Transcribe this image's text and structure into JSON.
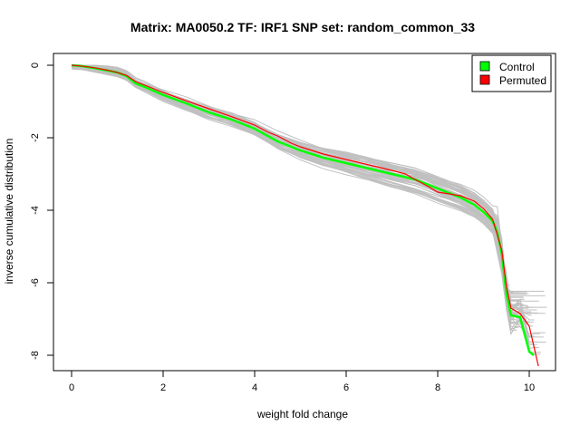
{
  "chart_data": {
    "type": "line",
    "title": "Matrix: MA0050.2 TF: IRF1 SNP set: random_common_33",
    "xlabel": "weight fold change",
    "ylabel": "inverse cumulative distribution",
    "xlim": [
      0,
      10.5
    ],
    "ylim": [
      -8,
      0
    ],
    "xticks": [
      0,
      2,
      4,
      6,
      8,
      10
    ],
    "yticks": [
      0,
      -2,
      -4,
      -6,
      -8
    ],
    "grid": false,
    "legend": {
      "position": "top-right",
      "entries": [
        {
          "label": "Control",
          "color": "#00ff00"
        },
        {
          "label": "Permuted",
          "color": "#ff0000"
        }
      ]
    },
    "series": [
      {
        "name": "Control",
        "color": "#00ff00",
        "x": [
          0.0,
          0.2,
          0.5,
          0.8,
          1.0,
          1.2,
          1.4,
          1.6,
          2.0,
          2.5,
          3.0,
          3.5,
          4.0,
          4.5,
          5.0,
          5.5,
          6.0,
          6.5,
          7.0,
          7.5,
          8.0,
          8.5,
          8.8,
          9.0,
          9.2,
          9.3,
          9.4,
          9.5,
          9.6,
          9.8,
          10.0,
          10.1
        ],
        "values": [
          0.0,
          -0.02,
          -0.08,
          -0.15,
          -0.2,
          -0.3,
          -0.5,
          -0.6,
          -0.82,
          -1.05,
          -1.3,
          -1.5,
          -1.75,
          -2.1,
          -2.35,
          -2.55,
          -2.7,
          -2.85,
          -3.0,
          -3.15,
          -3.4,
          -3.65,
          -3.85,
          -4.05,
          -4.3,
          -4.6,
          -5.2,
          -6.3,
          -6.9,
          -6.95,
          -7.9,
          -8.0
        ]
      },
      {
        "name": "Permuted",
        "color": "#ff0000",
        "x": [
          0.0,
          0.2,
          0.5,
          0.8,
          1.0,
          1.2,
          1.4,
          1.6,
          2.0,
          2.5,
          3.0,
          3.5,
          4.0,
          4.3,
          4.5,
          4.8,
          5.0,
          5.5,
          6.0,
          6.5,
          7.0,
          7.3,
          7.5,
          7.8,
          8.0,
          8.5,
          8.8,
          9.0,
          9.2,
          9.4,
          9.5,
          9.6,
          9.8,
          10.0,
          10.2
        ],
        "values": [
          0.0,
          -0.02,
          -0.07,
          -0.14,
          -0.2,
          -0.28,
          -0.45,
          -0.55,
          -0.75,
          -0.98,
          -1.2,
          -1.42,
          -1.65,
          -1.85,
          -1.95,
          -2.15,
          -2.25,
          -2.45,
          -2.6,
          -2.75,
          -2.9,
          -3.0,
          -3.15,
          -3.35,
          -3.5,
          -3.6,
          -3.75,
          -3.95,
          -4.25,
          -5.1,
          -6.1,
          -6.7,
          -6.85,
          -7.2,
          -8.3
        ]
      }
    ]
  }
}
